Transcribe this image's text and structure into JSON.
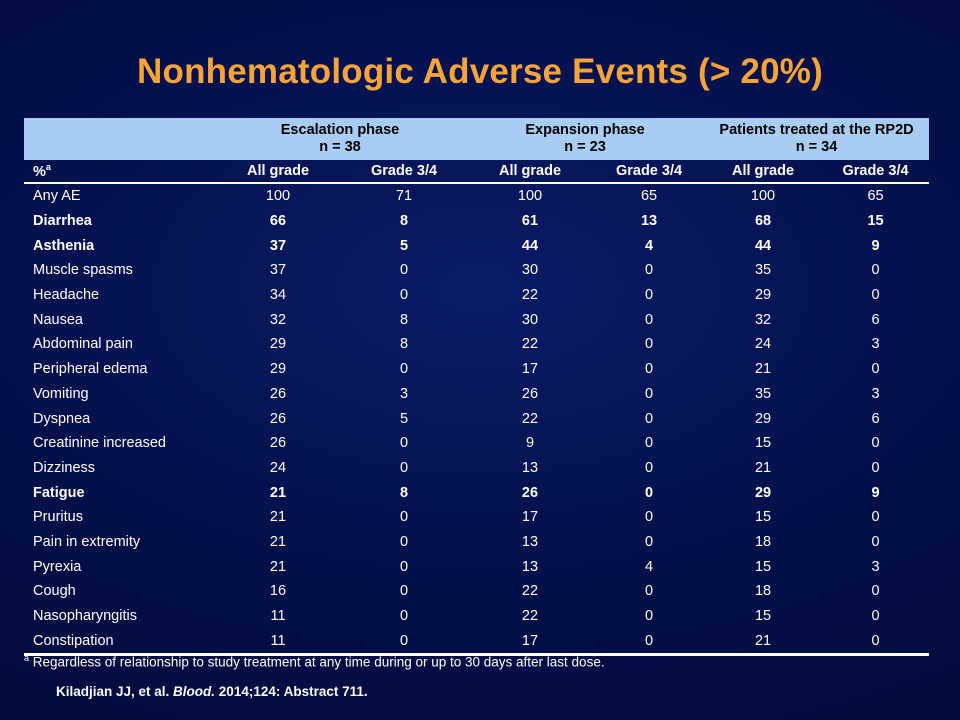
{
  "title": "Nonhematologic Adverse Events (> 20%)",
  "table": {
    "groups": [
      {
        "name": "Escalation phase",
        "n": "n = 38"
      },
      {
        "name": "Expansion phase",
        "n": "n = 23"
      },
      {
        "name": "Patients treated at the RP2D",
        "n": "n = 34"
      }
    ],
    "first_col_header": "%",
    "first_col_header_sup": "a",
    "columns": [
      "All grade",
      "Grade 3/4",
      "All grade",
      "Grade 3/4",
      "All grade",
      "Grade 3/4"
    ],
    "rows": [
      {
        "label": "Any AE",
        "bold": false,
        "values": [
          "100",
          "71",
          "100",
          "65",
          "100",
          "65"
        ]
      },
      {
        "label": "Diarrhea",
        "bold": true,
        "values": [
          "66",
          "8",
          "61",
          "13",
          "68",
          "15"
        ]
      },
      {
        "label": "Asthenia",
        "bold": true,
        "values": [
          "37",
          "5",
          "44",
          "4",
          "44",
          "9"
        ]
      },
      {
        "label": "Muscle spasms",
        "bold": false,
        "values": [
          "37",
          "0",
          "30",
          "0",
          "35",
          "0"
        ]
      },
      {
        "label": "Headache",
        "bold": false,
        "values": [
          "34",
          "0",
          "22",
          "0",
          "29",
          "0"
        ]
      },
      {
        "label": "Nausea",
        "bold": false,
        "values": [
          "32",
          "8",
          "30",
          "0",
          "32",
          "6"
        ]
      },
      {
        "label": "Abdominal pain",
        "bold": false,
        "values": [
          "29",
          "8",
          "22",
          "0",
          "24",
          "3"
        ]
      },
      {
        "label": "Peripheral edema",
        "bold": false,
        "values": [
          "29",
          "0",
          "17",
          "0",
          "21",
          "0"
        ]
      },
      {
        "label": "Vomiting",
        "bold": false,
        "values": [
          "26",
          "3",
          "26",
          "0",
          "35",
          "3"
        ]
      },
      {
        "label": "Dyspnea",
        "bold": false,
        "values": [
          "26",
          "5",
          "22",
          "0",
          "29",
          "6"
        ]
      },
      {
        "label": "Creatinine increased",
        "bold": false,
        "values": [
          "26",
          "0",
          "9",
          "0",
          "15",
          "0"
        ]
      },
      {
        "label": "Dizziness",
        "bold": false,
        "values": [
          "24",
          "0",
          "13",
          "0",
          "21",
          "0"
        ]
      },
      {
        "label": "Fatigue",
        "bold": true,
        "values": [
          "21",
          "8",
          "26",
          "0",
          "29",
          "9"
        ]
      },
      {
        "label": "Pruritus",
        "bold": false,
        "values": [
          "21",
          "0",
          "17",
          "0",
          "15",
          "0"
        ]
      },
      {
        "label": "Pain in extremity",
        "bold": false,
        "values": [
          "21",
          "0",
          "13",
          "0",
          "18",
          "0"
        ]
      },
      {
        "label": "Pyrexia",
        "bold": false,
        "values": [
          "21",
          "0",
          "13",
          "4",
          "15",
          "3"
        ]
      },
      {
        "label": "Cough",
        "bold": false,
        "values": [
          "16",
          "0",
          "22",
          "0",
          "18",
          "0"
        ]
      },
      {
        "label": "Nasopharyngitis",
        "bold": false,
        "values": [
          "11",
          "0",
          "22",
          "0",
          "15",
          "0"
        ]
      },
      {
        "label": "Constipation",
        "bold": false,
        "values": [
          "11",
          "0",
          "17",
          "0",
          "21",
          "0"
        ]
      }
    ]
  },
  "footnote": {
    "marker": "a",
    "text": " Regardless of relationship to study treatment at any time during or up to 30 days after last dose."
  },
  "citation": {
    "authors": "Kiladjian JJ, et al. ",
    "journal": "Blood.",
    "details": " 2014;124: Abstract 711."
  }
}
